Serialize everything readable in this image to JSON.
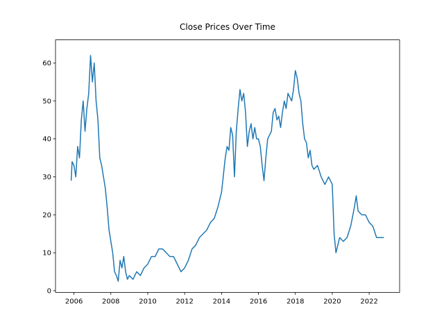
{
  "chart_data": {
    "type": "line",
    "title": "Close Prices Over Time",
    "x": [
      2005.85,
      2005.9,
      2006.0,
      2006.1,
      2006.2,
      2006.3,
      2006.4,
      2006.5,
      2006.6,
      2006.7,
      2006.8,
      2006.9,
      2007.0,
      2007.1,
      2007.2,
      2007.3,
      2007.4,
      2007.5,
      2007.6,
      2007.7,
      2007.8,
      2007.9,
      2008.0,
      2008.1,
      2008.2,
      2008.3,
      2008.4,
      2008.5,
      2008.6,
      2008.7,
      2008.8,
      2008.9,
      2009.0,
      2009.2,
      2009.4,
      2009.6,
      2009.8,
      2010.0,
      2010.2,
      2010.4,
      2010.6,
      2010.8,
      2011.0,
      2011.2,
      2011.4,
      2011.6,
      2011.8,
      2012.0,
      2012.2,
      2012.4,
      2012.6,
      2012.8,
      2013.0,
      2013.2,
      2013.4,
      2013.6,
      2013.8,
      2014.0,
      2014.2,
      2014.3,
      2014.4,
      2014.5,
      2014.6,
      2014.7,
      2014.8,
      2014.9,
      2015.0,
      2015.1,
      2015.2,
      2015.3,
      2015.4,
      2015.5,
      2015.6,
      2015.7,
      2015.8,
      2015.9,
      2016.0,
      2016.1,
      2016.2,
      2016.3,
      2016.4,
      2016.5,
      2016.7,
      2016.8,
      2016.9,
      2017.0,
      2017.1,
      2017.2,
      2017.3,
      2017.4,
      2017.5,
      2017.6,
      2017.8,
      2017.9,
      2018.0,
      2018.1,
      2018.2,
      2018.3,
      2018.4,
      2018.5,
      2018.6,
      2018.7,
      2018.8,
      2018.9,
      2019.0,
      2019.2,
      2019.4,
      2019.6,
      2019.8,
      2020.0,
      2020.1,
      2020.2,
      2020.3,
      2020.4,
      2020.6,
      2020.8,
      2021.0,
      2021.2,
      2021.3,
      2021.4,
      2021.6,
      2021.8,
      2022.0,
      2022.2,
      2022.4,
      2022.6,
      2022.8
    ],
    "series": [
      {
        "color": "#1f77b4",
        "values": [
          29,
          34,
          33,
          30,
          38,
          35,
          45,
          50,
          42,
          48,
          52,
          62,
          55,
          60,
          50,
          45,
          35,
          33,
          30,
          27,
          22,
          16,
          13,
          10,
          5,
          4,
          2.5,
          8,
          6,
          9,
          5,
          3,
          4,
          3,
          5,
          4,
          6,
          7,
          9,
          9,
          11,
          11,
          10,
          9,
          9,
          7,
          5,
          6,
          8,
          11,
          12,
          14,
          15,
          16,
          18,
          19,
          22,
          26,
          35,
          38,
          37,
          43,
          41,
          30,
          42,
          48,
          53,
          50,
          52,
          47,
          38,
          42,
          44,
          40,
          43,
          40,
          40,
          38,
          33,
          29,
          35,
          40,
          42,
          47,
          48,
          45,
          46,
          43,
          47,
          50,
          48,
          52,
          50,
          53,
          58,
          56,
          52,
          50,
          44,
          40,
          39,
          35,
          37,
          33,
          32,
          33,
          30,
          28,
          30,
          28,
          15,
          10,
          12,
          14,
          13,
          14,
          17,
          22,
          25,
          21,
          20,
          20,
          18,
          17,
          14,
          14,
          14
        ]
      }
    ],
    "xlim": [
      2005.0,
      2023.65
    ],
    "ylim": [
      -0.44,
      66.1
    ],
    "xticks": [
      2006,
      2008,
      2010,
      2012,
      2014,
      2016,
      2018,
      2020,
      2022
    ],
    "yticks": [
      0,
      10,
      20,
      30,
      40,
      50,
      60
    ]
  }
}
